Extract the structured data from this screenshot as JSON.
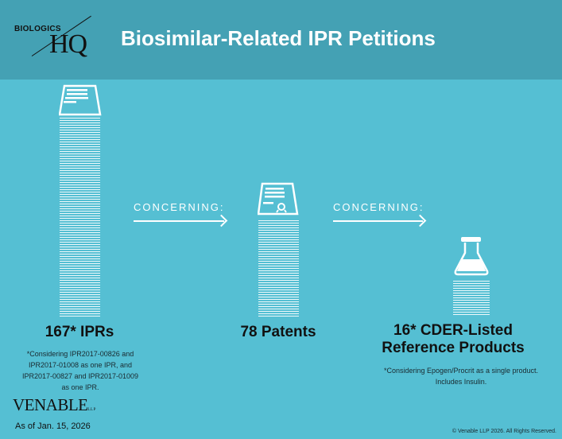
{
  "header": {
    "logo_text_small": "BIOLOGICS",
    "logo_text_large": "HQ",
    "title": "Biosimilar-Related IPR Petitions"
  },
  "connectors": [
    {
      "label": "CONCERNING:"
    },
    {
      "label": "CONCERNING:"
    }
  ],
  "columns": [
    {
      "icon": "document-stack-icon",
      "headline": "167* IPRs",
      "note": "*Considering IPR2017-00826 and IPR2017-01008 as one IPR, and IPR2017-00827 and IPR2017-01009 as one IPR.",
      "value": 167
    },
    {
      "icon": "patent-certificate-icon",
      "headline": "78 Patents",
      "note": "",
      "value": 78
    },
    {
      "icon": "flask-icon",
      "headline_line1": "16* CDER-Listed",
      "headline_line2": "Reference Products",
      "note": "*Considering Epogen/Procrit as a single product. Includes Insulin.",
      "value": 16
    }
  ],
  "footer": {
    "logo": "VENABLE",
    "logo_suffix": "LLP",
    "as_of": "As of Jan. 15, 2026",
    "copyright": "© Venable LLP 2026. All Rights Reserved."
  },
  "colors": {
    "header_bg": "#44a1b4",
    "body_bg": "#55bfd3",
    "accent": "#ffffff"
  }
}
